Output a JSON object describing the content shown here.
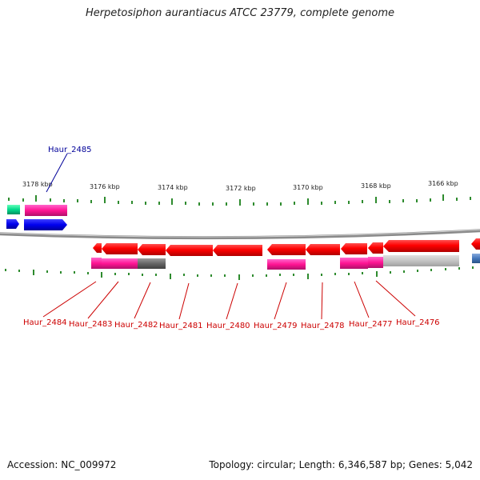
{
  "title": "Herpetosiphon aurantiacus ATCC 23779, complete genome",
  "footer": {
    "accession": "Accession: NC_009972",
    "topology": "Topology: circular; Length: 6,346,587 bp; Genes: 5,042"
  },
  "ruler": {
    "labels": [
      "3178 kbp",
      "3176 kbp",
      "3174 kbp",
      "3172 kbp",
      "3170 kbp",
      "3168 kbp",
      "3166 kbp"
    ]
  },
  "genes": [
    {
      "label": "Haur_2485",
      "color": "#000099"
    },
    {
      "label": "Haur_2484",
      "color": "#cc0000"
    },
    {
      "label": "Haur_2483",
      "color": "#cc0000"
    },
    {
      "label": "Haur_2482",
      "color": "#cc0000"
    },
    {
      "label": "Haur_2481",
      "color": "#cc0000"
    },
    {
      "label": "Haur_2480",
      "color": "#cc0000"
    },
    {
      "label": "Haur_2479",
      "color": "#cc0000"
    },
    {
      "label": "Haur_2478",
      "color": "#cc0000"
    },
    {
      "label": "Haur_2477",
      "color": "#cc0000"
    },
    {
      "label": "Haur_2476",
      "color": "#cc0000"
    }
  ]
}
